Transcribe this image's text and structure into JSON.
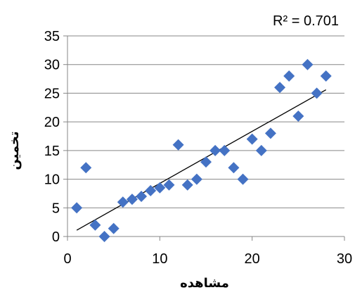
{
  "chart_data": {
    "type": "scatter",
    "xlabel": "مشاهده",
    "ylabel": "تخمین",
    "xlim": [
      0,
      30
    ],
    "ylim": [
      0,
      35
    ],
    "xticks": [
      0,
      10,
      20,
      30
    ],
    "yticks": [
      0,
      5,
      10,
      15,
      20,
      25,
      30,
      35
    ],
    "grid": "horizontal",
    "marker_color": "#4472C4",
    "trendline_color": "#000000",
    "annotation": "R² = 0.701",
    "trendline": {
      "x": [
        1,
        28
      ],
      "y": [
        1.1,
        25.6
      ]
    },
    "points": [
      {
        "x": 1,
        "y": 5
      },
      {
        "x": 2,
        "y": 12
      },
      {
        "x": 3,
        "y": 2
      },
      {
        "x": 4,
        "y": 0
      },
      {
        "x": 5,
        "y": 1.4
      },
      {
        "x": 6,
        "y": 6
      },
      {
        "x": 7,
        "y": 6.5
      },
      {
        "x": 8,
        "y": 7
      },
      {
        "x": 9,
        "y": 8
      },
      {
        "x": 10,
        "y": 8.5
      },
      {
        "x": 11,
        "y": 9
      },
      {
        "x": 12,
        "y": 16
      },
      {
        "x": 13,
        "y": 9
      },
      {
        "x": 14,
        "y": 10
      },
      {
        "x": 15,
        "y": 13
      },
      {
        "x": 16,
        "y": 15
      },
      {
        "x": 17,
        "y": 15
      },
      {
        "x": 18,
        "y": 12
      },
      {
        "x": 19,
        "y": 10
      },
      {
        "x": 20,
        "y": 17
      },
      {
        "x": 21,
        "y": 15
      },
      {
        "x": 22,
        "y": 18
      },
      {
        "x": 23,
        "y": 26
      },
      {
        "x": 24,
        "y": 28
      },
      {
        "x": 25,
        "y": 21
      },
      {
        "x": 26,
        "y": 30
      },
      {
        "x": 27,
        "y": 25
      },
      {
        "x": 28,
        "y": 28
      }
    ]
  }
}
